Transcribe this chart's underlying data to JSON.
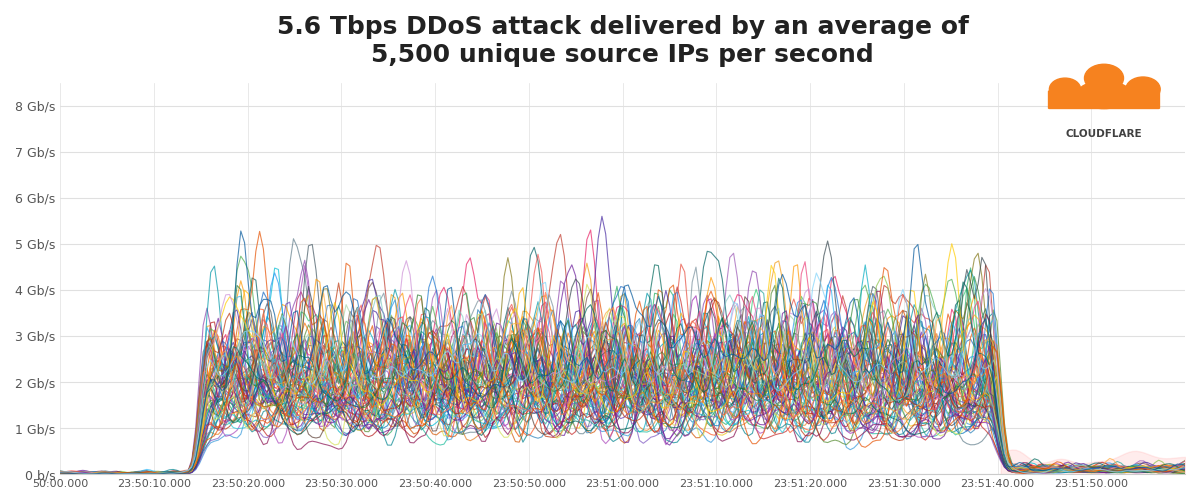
{
  "title": "5.6 Tbps DDoS attack delivered by an average of\n5,500 unique source IPs per second",
  "title_fontsize": 18,
  "background_color": "#ffffff",
  "plot_bg_color": "#ffffff",
  "grid_color": "#e0e0e0",
  "yticks": [
    0,
    1,
    2,
    3,
    4,
    5,
    6,
    7,
    8
  ],
  "ytick_labels": [
    "0 b/s",
    "1 Gb/s",
    "2 Gb/s",
    "3 Gb/s",
    "4 Gb/s",
    "5 Gb/s",
    "6 Gb/s",
    "7 Gb/s",
    "8 Gb/s"
  ],
  "ylim": [
    0,
    8.5
  ],
  "xlim": [
    0,
    120
  ],
  "xtick_positions": [
    0,
    10,
    20,
    30,
    40,
    50,
    60,
    70,
    80,
    90,
    100,
    110
  ],
  "xtick_labels": [
    "50:00.000",
    "23:50:10.000",
    "23:50:20.000",
    "23:50:30.000",
    "23:50:40.000",
    "23:50:50.000",
    "23:51:00.000",
    "23:51:10.000",
    "23:51:20.000",
    "23:51:30.000",
    "23:51:40.000",
    "23:51:50.000"
  ],
  "n_lines": 80,
  "attack_start": 15,
  "attack_end": 100,
  "seed": 42,
  "cloudflare_text": "CLOUDFLARE",
  "cloudflare_color": "#404040",
  "line_alpha": 0.7,
  "line_width": 0.8,
  "colors": [
    "#e74c3c",
    "#c0392b",
    "#e67e22",
    "#d35400",
    "#f39c12",
    "#f1c40f",
    "#2ecc71",
    "#27ae60",
    "#1abc9c",
    "#16a085",
    "#3498db",
    "#2980b9",
    "#9b59b6",
    "#8e44ad",
    "#e91e63",
    "#ad1457",
    "#ff5722",
    "#bf360c",
    "#795548",
    "#5d4037",
    "#607d8b",
    "#455a64",
    "#00bcd4",
    "#0097a7",
    "#8bc34a",
    "#558b2f",
    "#ff9800",
    "#e65100",
    "#673ab7",
    "#4527a0",
    "#2196f3",
    "#1565c0",
    "#4caf50",
    "#2e7d32",
    "#f44336",
    "#b71c1c",
    "#9c27b0",
    "#6a1b9a",
    "#00acc1",
    "#006064",
    "#ffb300",
    "#ff6f00",
    "#ef5350",
    "#c62828",
    "#ab47bc",
    "#6a1b9a",
    "#42a5f5",
    "#1976d2",
    "#66bb6a",
    "#388e3c",
    "#ffa726",
    "#e65100",
    "#26c6da",
    "#00838f",
    "#ec407a",
    "#880e4f",
    "#7e57c2",
    "#4527a0",
    "#29b6f6",
    "#0277bd",
    "#26a69a",
    "#00695c",
    "#d4e157",
    "#827717",
    "#ff7043",
    "#bf360c",
    "#78909c",
    "#37474f",
    "#a5d6a7",
    "#2e7d32",
    "#ffcc02",
    "#f57f17",
    "#ce93d8",
    "#6a1b9a",
    "#80cbc4",
    "#00695c",
    "#ffab40",
    "#e65100",
    "#81d4fa",
    "#01579b",
    "#c5e1a5",
    "#558b2f"
  ]
}
